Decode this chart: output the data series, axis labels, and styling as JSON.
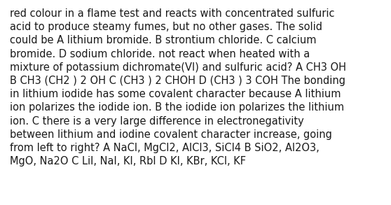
{
  "background_color": "#ffffff",
  "text_color": "#1a1a1a",
  "font_size": 10.5,
  "font_family": "DejaVu Sans",
  "text": "red colour in a flame test and reacts with concentrated sulfuric\nacid to produce steamy fumes, but no other gases. The solid\ncould be A lithium bromide. B strontium chloride. C calcium\nbromide. D sodium chloride. not react when heated with a\nmixture of potassium dichromate(VI) and sulfuric acid? A CH3 OH\nB CH3 (CH2 ) 2 OH C (CH3 ) 2 CHOH D (CH3 ) 3 COH The bonding\nin lithium iodide has some covalent character because A lithium\nion polarizes the iodide ion. B the iodide ion polarizes the lithium\nion. C there is a very large difference in electronegativity\nbetween lithium and iodine covalent character increase, going\nfrom left to right? A NaCl, MgCl2, AlCl3, SiCl4 B SiO2, Al2O3,\nMgO, Na2O C LiI, NaI, KI, RbI D KI, KBr, KCl, KF",
  "figsize": [
    5.58,
    2.93
  ],
  "dpi": 100
}
